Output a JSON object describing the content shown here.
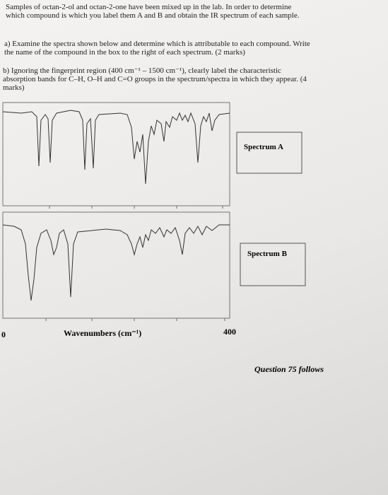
{
  "question": {
    "intro": "Samples of octan-2-ol and octan-2-one have been mixed up in the lab. In order to determine which compound is which you label them A and B and obtain the IR spectrum of each sample.",
    "part_a": "a) Examine the spectra shown below and determine which is attributable to each compound. Write the name of the compound in the box to the right of each spectrum. (2 marks)",
    "part_b": "b) Ignoring the fingerprint region (400 cm⁻¹ – 1500 cm⁻¹), clearly label the characteristic absorption bands for C–H, O–H and C=O groups in the spectrum/spectra in which they appear. (4 marks)"
  },
  "spectra": [
    {
      "label": "Spectrum A"
    },
    {
      "label": "Spectrum B"
    }
  ],
  "axis": {
    "left_label": "0",
    "title": "Wavenumbers (cm⁻¹)",
    "right_label": "400"
  },
  "footer": "Question 75 follows"
}
